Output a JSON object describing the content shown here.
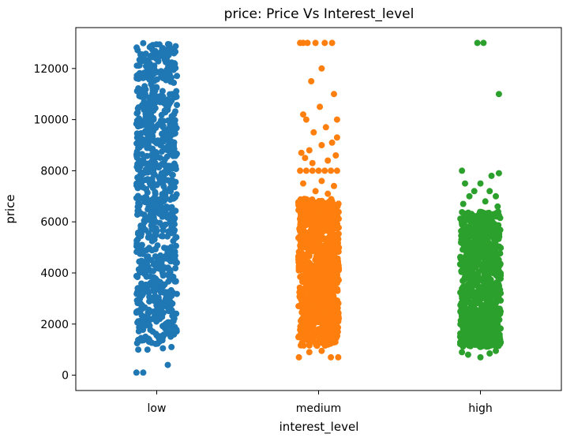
{
  "chart_data": {
    "type": "scatter",
    "title": "price: Price Vs Interest_level",
    "xlabel": "interest_level",
    "ylabel": "price",
    "categories": [
      "low",
      "medium",
      "high"
    ],
    "ylim": [
      -600,
      13600
    ],
    "yticks": [
      0,
      2000,
      4000,
      6000,
      8000,
      10000,
      12000
    ],
    "grid": false,
    "legend": "none",
    "series": [
      {
        "category": "low",
        "color": "#1f77b4",
        "dense_range": [
          1200,
          13000
        ],
        "points": [
          {
            "x": -0.33,
            "y": 100
          },
          {
            "x": -0.22,
            "y": 100
          },
          {
            "x": 0.18,
            "y": 400
          },
          {
            "x": -0.3,
            "y": 1000
          },
          {
            "x": -0.15,
            "y": 1000
          },
          {
            "x": 0.1,
            "y": 1050
          },
          {
            "x": 0.24,
            "y": 1100
          },
          {
            "x": -0.05,
            "y": 10000
          },
          {
            "x": 0.12,
            "y": 12600
          },
          {
            "x": 0.2,
            "y": 12700
          }
        ]
      },
      {
        "category": "medium",
        "color": "#ff7f0e",
        "dense_range": [
          1150,
          6900
        ],
        "points": [
          {
            "x": -0.3,
            "y": 13000
          },
          {
            "x": -0.25,
            "y": 13000
          },
          {
            "x": -0.18,
            "y": 13000
          },
          {
            "x": -0.05,
            "y": 13000
          },
          {
            "x": 0.1,
            "y": 13000
          },
          {
            "x": 0.22,
            "y": 13000
          },
          {
            "x": 0.05,
            "y": 12000
          },
          {
            "x": -0.12,
            "y": 11500
          },
          {
            "x": 0.25,
            "y": 11000
          },
          {
            "x": 0.02,
            "y": 10500
          },
          {
            "x": -0.25,
            "y": 10200
          },
          {
            "x": -0.2,
            "y": 10000
          },
          {
            "x": 0.3,
            "y": 10000
          },
          {
            "x": 0.12,
            "y": 9700
          },
          {
            "x": -0.08,
            "y": 9500
          },
          {
            "x": 0.3,
            "y": 9300
          },
          {
            "x": 0.22,
            "y": 9100
          },
          {
            "x": 0.05,
            "y": 9000
          },
          {
            "x": -0.15,
            "y": 8800
          },
          {
            "x": -0.28,
            "y": 8700
          },
          {
            "x": 0.28,
            "y": 8600
          },
          {
            "x": -0.22,
            "y": 8500
          },
          {
            "x": -0.1,
            "y": 8300
          },
          {
            "x": 0.15,
            "y": 8400
          },
          {
            "x": -0.3,
            "y": 8000
          },
          {
            "x": -0.2,
            "y": 8000
          },
          {
            "x": -0.1,
            "y": 8000
          },
          {
            "x": 0.0,
            "y": 8000
          },
          {
            "x": 0.1,
            "y": 8000
          },
          {
            "x": 0.2,
            "y": 8000
          },
          {
            "x": 0.3,
            "y": 8000
          },
          {
            "x": -0.25,
            "y": 7500
          },
          {
            "x": 0.05,
            "y": 7600
          },
          {
            "x": 0.25,
            "y": 7400
          },
          {
            "x": -0.05,
            "y": 7200
          },
          {
            "x": 0.15,
            "y": 7100
          },
          {
            "x": -0.32,
            "y": 700
          },
          {
            "x": 0.2,
            "y": 700
          },
          {
            "x": 0.32,
            "y": 700
          },
          {
            "x": -0.15,
            "y": 900
          },
          {
            "x": 0.05,
            "y": 950
          }
        ]
      },
      {
        "category": "high",
        "color": "#2ca02c",
        "dense_range": [
          1100,
          6400
        ],
        "points": [
          {
            "x": -0.05,
            "y": 13000
          },
          {
            "x": 0.05,
            "y": 13000
          },
          {
            "x": 0.3,
            "y": 11000
          },
          {
            "x": -0.3,
            "y": 8000
          },
          {
            "x": 0.3,
            "y": 7900
          },
          {
            "x": 0.18,
            "y": 7800
          },
          {
            "x": 0.0,
            "y": 7500
          },
          {
            "x": -0.25,
            "y": 7500
          },
          {
            "x": 0.15,
            "y": 7200
          },
          {
            "x": -0.1,
            "y": 7200
          },
          {
            "x": 0.25,
            "y": 7000
          },
          {
            "x": -0.18,
            "y": 7000
          },
          {
            "x": 0.08,
            "y": 6800
          },
          {
            "x": -0.28,
            "y": 6700
          },
          {
            "x": 0.28,
            "y": 6600
          },
          {
            "x": -0.2,
            "y": 800
          },
          {
            "x": 0.0,
            "y": 700
          },
          {
            "x": 0.15,
            "y": 850
          },
          {
            "x": -0.3,
            "y": 900
          },
          {
            "x": 0.25,
            "y": 950
          }
        ]
      }
    ]
  }
}
